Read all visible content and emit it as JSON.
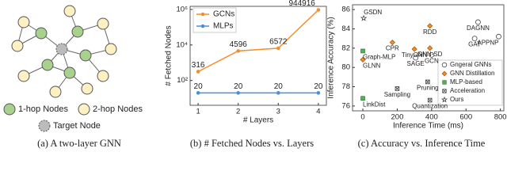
{
  "diagram": {
    "caption": "(a) A two-layer GNN",
    "legend": [
      "1-hop Nodes",
      "2-hop Nodes",
      "Target Node"
    ]
  },
  "chart_data": [
    {
      "type": "line",
      "caption": "(b) # Fetched Nodes vs. Layers",
      "xlabel": "# Layers",
      "ylabel": "# Fetched Nodes",
      "x": [
        1,
        2,
        3,
        4
      ],
      "xlim": [
        0.8,
        4.2
      ],
      "xticks": [
        1,
        2,
        3,
        4
      ],
      "ylog": true,
      "ylim": [
        4,
        1500000
      ],
      "yticks": [
        {
          "value": 100,
          "label": "10²"
        },
        {
          "value": 10000,
          "label": "10⁴"
        },
        {
          "value": 1000000,
          "label": "10⁶"
        }
      ],
      "legend": "upper left",
      "series": [
        {
          "name": "GCNs",
          "color": "#f28e2b",
          "values": [
            316,
            4596,
            6572,
            944916
          ]
        },
        {
          "name": "MLPs",
          "color": "#4a90d9",
          "values": [
            20,
            20,
            20,
            20
          ]
        }
      ]
    },
    {
      "type": "scatter",
      "caption": "(c) Accuracy vs. Inference Time",
      "xlabel": "Inference Time (ms)",
      "ylabel": "Inference Accuracy (%)",
      "xlim": [
        -60,
        820
      ],
      "xticks": [
        0,
        200,
        400,
        600,
        800
      ],
      "ylim": [
        75.5,
        86.5
      ],
      "yticks": [
        76,
        78,
        80,
        82,
        84,
        86
      ],
      "legend": "right",
      "series": [
        {
          "name": "Gngeral GNNs",
          "marker": "circle",
          "color": "#ffffff",
          "labels": [
            "DAGNN",
            "GAT",
            "APPNP",
            "SAGE",
            "GCN"
          ],
          "x": [
            670,
            650,
            790,
            307,
            400
          ],
          "y": [
            84.7,
            83.0,
            83.2,
            81.0,
            81.3
          ]
        },
        {
          "name": "GNN Distillation",
          "marker": "diamond",
          "color": "#f28e2b",
          "labels": [
            "RDD",
            "CPR",
            "TinyGNN",
            "GNN-SD",
            "GLNN"
          ],
          "x": [
            390,
            172,
            300,
            390,
            0
          ],
          "y": [
            84.3,
            82.6,
            81.9,
            82.0,
            80.8
          ]
        },
        {
          "name": "MLP-based",
          "marker": "square",
          "color": "#5aae61",
          "labels": [
            "Graph-MLP",
            "LinkDist"
          ],
          "x": [
            0,
            0
          ],
          "y": [
            81.7,
            76.8
          ]
        },
        {
          "name": "Acceleration",
          "marker": "crossed-square",
          "color": "#ffffff",
          "labels": [
            "Sampling",
            "Pruning",
            "Quantization"
          ],
          "x": [
            200,
            377,
            390
          ],
          "y": [
            77.8,
            78.5,
            76.6
          ]
        },
        {
          "name": "Ours",
          "marker": "star",
          "color": "#ffffff",
          "labels": [
            "GSDN"
          ],
          "x": [
            5
          ],
          "y": [
            85.1
          ]
        }
      ]
    }
  ]
}
